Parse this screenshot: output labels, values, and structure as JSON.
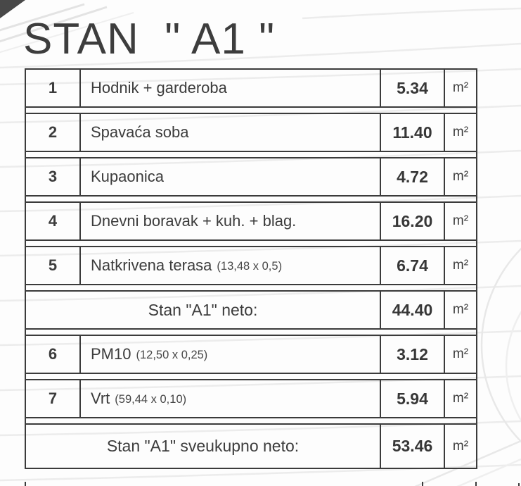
{
  "page": {
    "title": "STAN  \" A1 \""
  },
  "colors": {
    "text": "#3a3a3a",
    "table_border": "#3b3b3b",
    "watermark_line": "#ececec",
    "corner_fold": "#484848",
    "background": "#fdfdfd"
  },
  "table": {
    "unit": "m²",
    "rows": [
      {
        "type": "item",
        "num": "1",
        "name": "Hodnik + garderoba",
        "note": "",
        "value": "5.34"
      },
      {
        "type": "item",
        "num": "2",
        "name": "Spavaća soba",
        "note": "",
        "value": "11.40"
      },
      {
        "type": "item",
        "num": "3",
        "name": "Kupaonica",
        "note": "",
        "value": "4.72"
      },
      {
        "type": "item",
        "num": "4",
        "name": "Dnevni boravak + kuh. + blag.",
        "note": "",
        "value": "16.20"
      },
      {
        "type": "item",
        "num": "5",
        "name": "Natkrivena terasa",
        "note": "(13,48 x 0,5)",
        "value": "6.74"
      },
      {
        "type": "subtotal",
        "label": "Stan \"A1\" neto:",
        "value": "44.40"
      },
      {
        "type": "item",
        "num": "6",
        "name": "PM10",
        "note": "(12,50 x 0,25)",
        "value": "3.12"
      },
      {
        "type": "item",
        "num": "7",
        "name": "Vrt",
        "note": "(59,44 x 0,10)",
        "value": "5.94"
      },
      {
        "type": "total",
        "label": "Stan \"A1\" sveukupno neto:",
        "value": "53.46"
      }
    ]
  }
}
